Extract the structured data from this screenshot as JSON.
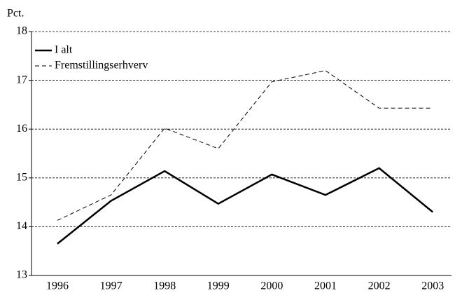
{
  "chart_data": {
    "type": "line",
    "y_label": "Pct.",
    "categories": [
      "1996",
      "1997",
      "1998",
      "1999",
      "2000",
      "2001",
      "2002",
      "2003"
    ],
    "series": [
      {
        "name": "I alt",
        "color": "#000000",
        "style": "solid",
        "values": [
          13.65,
          14.53,
          15.14,
          14.47,
          15.07,
          14.65,
          15.2,
          14.3
        ]
      },
      {
        "name": "Fremstillingserhverv",
        "color": "#000000",
        "style": "dashed",
        "values": [
          14.13,
          14.65,
          16.02,
          15.6,
          16.97,
          17.2,
          16.43,
          16.43
        ]
      }
    ],
    "ylim": [
      13,
      18
    ],
    "yticks": [
      13,
      14,
      15,
      16,
      17,
      18
    ],
    "grid": true,
    "legend": "upper left"
  }
}
